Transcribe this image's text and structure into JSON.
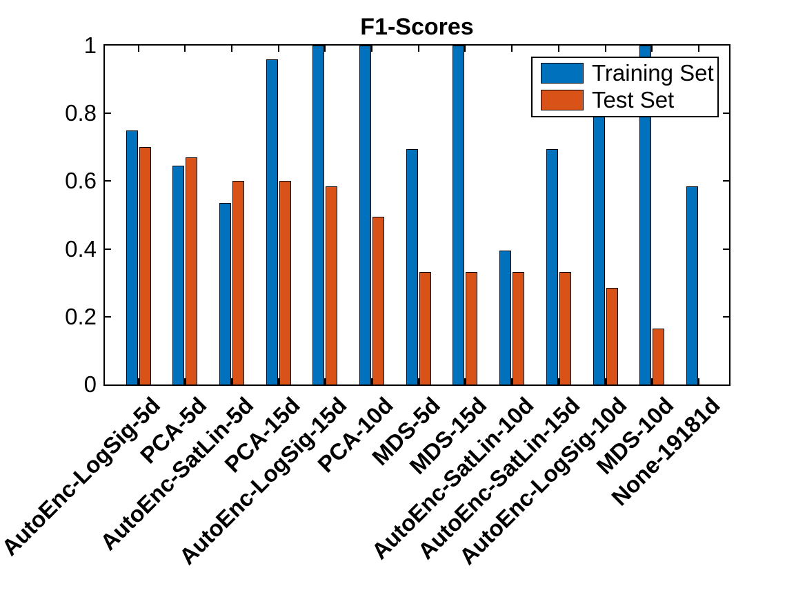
{
  "chart_data": {
    "type": "bar",
    "title": "F1-Scores",
    "categories": [
      "AutoEnc-LogSig-5d",
      "PCA-5d",
      "AutoEnc-SatLin-5d",
      "PCA-15d",
      "AutoEnc-LogSig-15d",
      "PCA-10d",
      "MDS-5d",
      "MDS-15d",
      "AutoEnc-SatLin-10d",
      "AutoEnc-SatLin-15d",
      "AutoEnc-LogSig-10d",
      "MDS-10d",
      "None-19181d"
    ],
    "series": [
      {
        "name": "Training Set",
        "color": "#0072BD",
        "values": [
          0.75,
          0.645,
          0.535,
          0.96,
          1.0,
          1.0,
          0.695,
          1.0,
          0.395,
          0.695,
          0.8,
          1.0,
          0.585
        ]
      },
      {
        "name": "Test Set",
        "color": "#D95319",
        "values": [
          0.7,
          0.67,
          0.6,
          0.6,
          0.585,
          0.495,
          0.333,
          0.333,
          0.333,
          0.333,
          0.285,
          0.165,
          0
        ]
      }
    ],
    "xlabel": "",
    "ylabel": "",
    "ylim": [
      0,
      1
    ],
    "yticks": [
      0,
      0.2,
      0.4,
      0.6,
      0.8,
      1
    ],
    "ytick_labels": [
      "0",
      "0.2",
      "0.4",
      "0.6",
      "0.8",
      "1"
    ],
    "legend_position": "northeast",
    "grid": false,
    "axis_color": "#000000",
    "bar_edge_color": "#000000",
    "background_color": "#FFFFFF"
  }
}
